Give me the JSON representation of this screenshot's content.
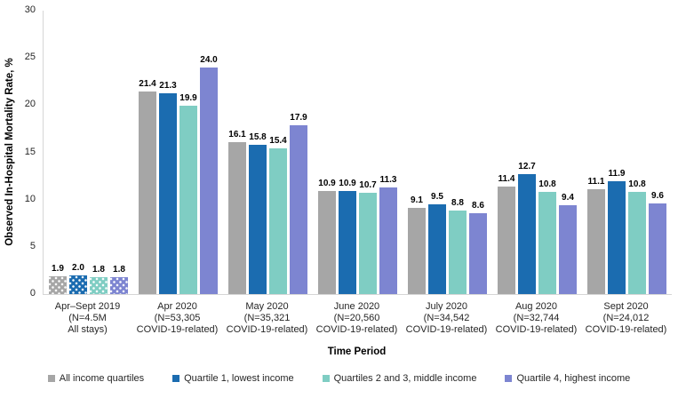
{
  "chart_data": {
    "type": "bar",
    "title": "",
    "xlabel": "Time Period",
    "ylabel": "Observed In-Hospital Mortality Rate, %",
    "ylim": [
      0,
      30
    ],
    "yticks": [
      0,
      5,
      10,
      15,
      20,
      25,
      30
    ],
    "grid": false,
    "legend_position": "bottom",
    "value_label_decimals": 1,
    "categories": [
      [
        "Apr–Sept 2019",
        "(N=4.5M",
        "All stays)"
      ],
      [
        "Apr 2020",
        "(N=53,305",
        "COVID-19-related)"
      ],
      [
        "May 2020",
        "(N=35,321",
        "COVID-19-related)"
      ],
      [
        "June 2020",
        "(N=20,560",
        "COVID-19-related)"
      ],
      [
        "July 2020",
        "(N=34,542",
        "COVID-19-related)"
      ],
      [
        "Aug 2020",
        "(N=32,744",
        "COVID-19-related)"
      ],
      [
        "Sept 2020",
        "(N=24,012",
        "COVID-19-related)"
      ]
    ],
    "series": [
      {
        "name": "All income quartiles",
        "color": "#a6a6a6",
        "values": [
          1.9,
          21.4,
          16.1,
          10.9,
          9.1,
          11.4,
          11.1
        ]
      },
      {
        "name": "Quartile 1, lowest income",
        "color": "#1b6cb0",
        "values": [
          2.0,
          21.3,
          15.8,
          10.9,
          9.5,
          12.7,
          11.9
        ]
      },
      {
        "name": "Quartiles 2 and 3, middle income",
        "color": "#7fcdc3",
        "values": [
          1.8,
          19.9,
          15.4,
          10.7,
          8.8,
          10.8,
          10.8
        ]
      },
      {
        "name": "Quartile 4, highest income",
        "color": "#7d85d1",
        "values": [
          1.8,
          24.0,
          17.9,
          11.3,
          8.6,
          9.4,
          9.6
        ]
      }
    ],
    "patterned_category_index": 0
  }
}
